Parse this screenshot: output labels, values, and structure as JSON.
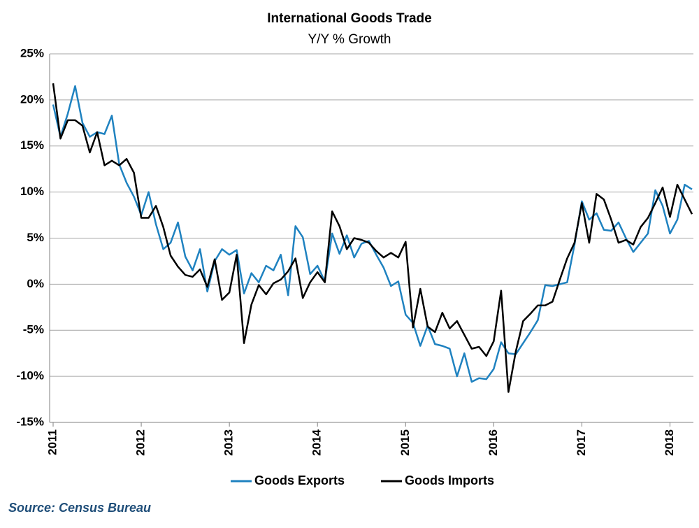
{
  "chart_data": {
    "type": "line",
    "title": "International Goods Trade",
    "subtitle": "Y/Y % Growth",
    "categories": [
      "2011",
      null,
      null,
      null,
      null,
      null,
      null,
      null,
      null,
      null,
      null,
      null,
      "2012",
      null,
      null,
      null,
      null,
      null,
      null,
      null,
      null,
      null,
      null,
      null,
      "2013",
      null,
      null,
      null,
      null,
      null,
      null,
      null,
      null,
      null,
      null,
      null,
      "2014",
      null,
      null,
      null,
      null,
      null,
      null,
      null,
      null,
      null,
      null,
      null,
      "2015",
      null,
      null,
      null,
      null,
      null,
      null,
      null,
      null,
      null,
      null,
      null,
      "2016",
      null,
      null,
      null,
      null,
      null,
      null,
      null,
      null,
      null,
      null,
      null,
      "2017",
      null,
      null,
      null,
      null,
      null,
      null,
      null,
      null,
      null,
      null,
      null,
      "2018",
      null,
      null,
      null
    ],
    "series": [
      {
        "name": "Goods Exports",
        "color": "#1f82c0",
        "values": [
          19.5,
          16,
          18.5,
          21.5,
          17.5,
          16,
          16.5,
          16.3,
          18.3,
          13,
          11,
          9.5,
          7.5,
          10,
          6.5,
          3.8,
          4.5,
          6.7,
          3,
          1.5,
          3.8,
          -0.8,
          2.5,
          3.8,
          3.2,
          3.7,
          -1,
          1.2,
          0.2,
          2,
          1.5,
          3.2,
          -1.2,
          6.3,
          5.1,
          1.1,
          2,
          0.3,
          5.5,
          3.3,
          5.3,
          2.9,
          4.4,
          4.7,
          3.2,
          1.8,
          -0.2,
          0.3,
          -3.3,
          -4.2,
          -6.7,
          -4.5,
          -6.5,
          -6.7,
          -7,
          -10,
          -7.5,
          -10.6,
          -10.2,
          -10.3,
          -9.2,
          -6.3,
          -7.5,
          -7.6,
          -6.4,
          -5.2,
          -3.9,
          -0.1,
          -0.2,
          0,
          0.2,
          4.3,
          9,
          7,
          7.7,
          5.9,
          5.8,
          6.7,
          5,
          3.5,
          4.5,
          5.5,
          10.2,
          8.5,
          5.5,
          7,
          10.8,
          10.3
        ]
      },
      {
        "name": "Goods Imports",
        "color": "#000000",
        "values": [
          21.8,
          15.8,
          17.8,
          17.8,
          17.2,
          14.3,
          16.5,
          12.9,
          13.4,
          12.9,
          13.6,
          12.1,
          7.2,
          7.2,
          8.5,
          6.2,
          3.1,
          1.9,
          1,
          0.8,
          1.6,
          -0.3,
          2.7,
          -1.7,
          -0.9,
          3.2,
          -6.4,
          -2.2,
          -0.1,
          -1.1,
          0.1,
          0.5,
          1.4,
          2.8,
          -1.5,
          0.2,
          1.3,
          0.2,
          7.9,
          6.3,
          3.8,
          5,
          4.8,
          4.5,
          3.6,
          2.9,
          3.4,
          2.9,
          4.6,
          -4.7,
          -0.5,
          -4.6,
          -5.2,
          -3.1,
          -4.8,
          -4,
          -5.5,
          -7,
          -6.8,
          -7.8,
          -6.2,
          -0.7,
          -11.7,
          -7.3,
          -4,
          -3.2,
          -2.3,
          -2.3,
          -1.9,
          0.5,
          2.8,
          4.5,
          8.8,
          4.5,
          9.8,
          9.2,
          7,
          4.5,
          4.8,
          4.3,
          6.2,
          7.2,
          8.8,
          10.5,
          7.3,
          10.8,
          9.2,
          7.6
        ]
      }
    ],
    "ylim": [
      -15,
      25
    ],
    "yticks": [
      {
        "value": -15,
        "label": "-15%"
      },
      {
        "value": -10,
        "label": "-10%"
      },
      {
        "value": -5,
        "label": "-5%"
      },
      {
        "value": 0,
        "label": "0%"
      },
      {
        "value": 5,
        "label": "5%"
      },
      {
        "value": 10,
        "label": "10%"
      },
      {
        "value": 15,
        "label": "15%"
      },
      {
        "value": 20,
        "label": "20%"
      },
      {
        "value": 25,
        "label": "25%"
      }
    ],
    "grid": true,
    "legend": "bottom"
  },
  "source": "Source: Census Bureau"
}
